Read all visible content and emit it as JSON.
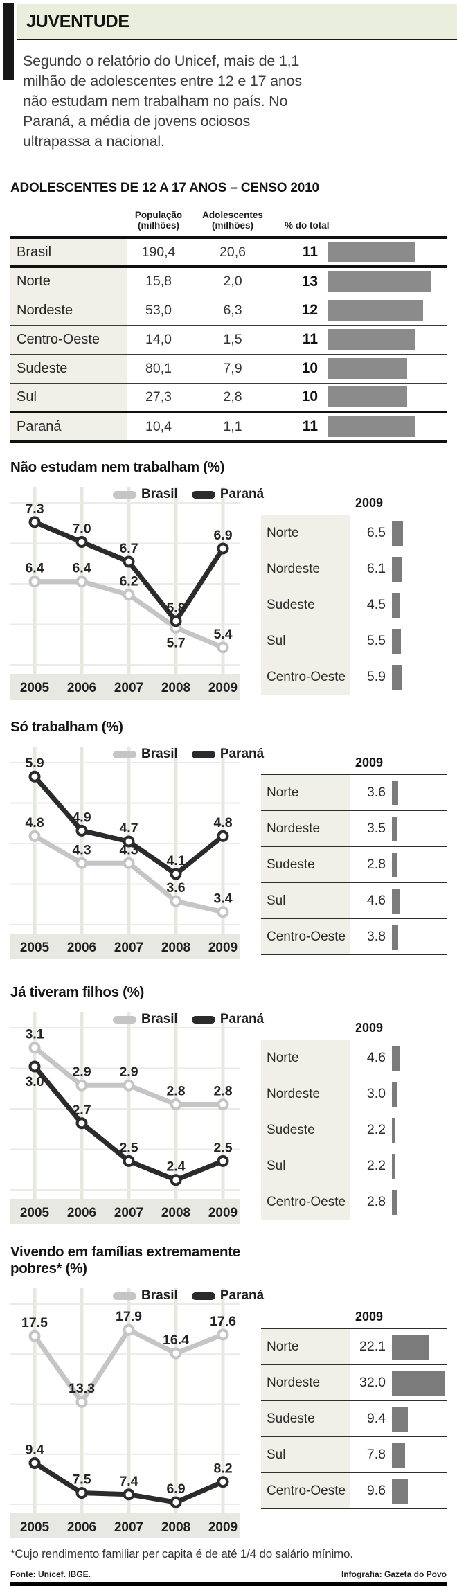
{
  "header": {
    "title": "JUVENTUDE",
    "intro": "Segundo o relatório do Unicef, mais de 1,1 milhão de adolescentes entre 12 e 17 anos não estudam nem trabalham no país. No Paraná, a média de jovens ociosos ultrapassa a nacional."
  },
  "census_table": {
    "title": "ADOLESCENTES DE 12 A 17 ANOS – CENSO 2010",
    "columns": [
      "População (milhões)",
      "Adolescentes (milhões)",
      "% do total"
    ],
    "rows": [
      {
        "region": "Brasil",
        "population": "190,4",
        "adolescents": "20,6",
        "pct": 11
      },
      {
        "region": "Norte",
        "population": "15,8",
        "adolescents": "2,0",
        "pct": 13
      },
      {
        "region": "Nordeste",
        "population": "53,0",
        "adolescents": "6,3",
        "pct": 12
      },
      {
        "region": "Centro-Oeste",
        "population": "14,0",
        "adolescents": "1,5",
        "pct": 11
      },
      {
        "region": "Sudeste",
        "population": "80,1",
        "adolescents": "7,9",
        "pct": 10
      },
      {
        "region": "Sul",
        "population": "27,3",
        "adolescents": "2,8",
        "pct": 10
      },
      {
        "region": "Paraná",
        "population": "10,4",
        "adolescents": "1,1",
        "pct": 11
      }
    ]
  },
  "chart_data": [
    {
      "type": "line",
      "title": "Não estudam nem trabalham (%)",
      "x": [
        "2005",
        "2006",
        "2007",
        "2008",
        "2009"
      ],
      "series": [
        {
          "name": "Brasil",
          "values": [
            6.4,
            6.4,
            6.2,
            5.7,
            5.4
          ]
        },
        {
          "name": "Paraná",
          "values": [
            7.3,
            7.0,
            6.7,
            5.8,
            6.9
          ]
        }
      ],
      "ylim": [
        5.0,
        7.75
      ],
      "grid": true,
      "legend_position": "top",
      "side_table": {
        "type": "bar",
        "header": "2009",
        "categories": [
          "Norte",
          "Nordeste",
          "Sudeste",
          "Sul",
          "Centro-Oeste"
        ],
        "values": [
          6.5,
          6.1,
          4.5,
          5.5,
          5.9
        ]
      }
    },
    {
      "type": "line",
      "title": "Só trabalham (%)",
      "x": [
        "2005",
        "2006",
        "2007",
        "2008",
        "2009"
      ],
      "series": [
        {
          "name": "Brasil",
          "values": [
            4.8,
            4.3,
            4.3,
            3.6,
            3.4
          ]
        },
        {
          "name": "Paraná",
          "values": [
            5.9,
            4.9,
            4.7,
            4.1,
            4.8
          ]
        }
      ],
      "ylim": [
        3.0,
        6.35
      ],
      "grid": true,
      "legend_position": "top",
      "side_table": {
        "type": "bar",
        "header": "2009",
        "categories": [
          "Norte",
          "Nordeste",
          "Sudeste",
          "Sul",
          "Centro-Oeste"
        ],
        "values": [
          3.6,
          3.5,
          2.8,
          4.6,
          3.8
        ]
      }
    },
    {
      "type": "line",
      "title": "Já tiveram filhos (%)",
      "x": [
        "2005",
        "2006",
        "2007",
        "2008",
        "2009"
      ],
      "series": [
        {
          "name": "Brasil",
          "values": [
            3.1,
            2.9,
            2.9,
            2.8,
            2.8
          ]
        },
        {
          "name": "Paraná",
          "values": [
            3.0,
            2.7,
            2.5,
            2.4,
            2.5
          ]
        }
      ],
      "ylim": [
        2.3,
        3.26
      ],
      "grid": true,
      "legend_position": "top",
      "side_table": {
        "type": "bar",
        "header": "2009",
        "categories": [
          "Norte",
          "Nordeste",
          "Sudeste",
          "Sul",
          "Centro-Oeste"
        ],
        "values": [
          4.6,
          3.0,
          2.2,
          2.2,
          2.8
        ]
      }
    },
    {
      "type": "line",
      "title": "Vivendo em famílias extremamente pobres* (%)",
      "x": [
        "2005",
        "2006",
        "2007",
        "2008",
        "2009"
      ],
      "series": [
        {
          "name": "Brasil",
          "values": [
            17.5,
            13.3,
            17.9,
            16.4,
            17.6
          ]
        },
        {
          "name": "Paraná",
          "values": [
            9.4,
            7.5,
            7.4,
            6.9,
            8.2
          ]
        }
      ],
      "ylim": [
        6.2,
        20.2
      ],
      "grid": true,
      "legend_position": "top",
      "side_table": {
        "type": "bar",
        "header": "2009",
        "categories": [
          "Norte",
          "Nordeste",
          "Sudeste",
          "Sul",
          "Centro-Oeste"
        ],
        "values": [
          22.1,
          32.0,
          9.4,
          7.8,
          9.6
        ]
      }
    }
  ],
  "footer": {
    "footnote": "*Cujo rendimento familiar per capita é de até 1/4 do salário mínimo.",
    "source": "Fonte: Unicef. IBGE.",
    "credit": "Infografia: Gazeta do Povo"
  },
  "colors": {
    "brasil_line": "#c5c5c5",
    "parana_line": "#2b2b2b",
    "band_green": "#e9efdc",
    "table_label_bg": "#f0efe8",
    "census_bar": "#8b8b8b",
    "side_bar": "#7b7b7b",
    "axis_band": "#e8e8e3"
  }
}
